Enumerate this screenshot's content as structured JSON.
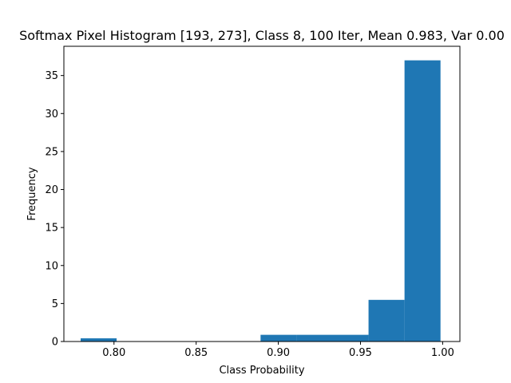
{
  "chart_data": {
    "type": "bar",
    "title": "Softmax Pixel Histogram [193, 273], Class 8, 100 Iter, Mean 0.983, Var 0.00",
    "xlabel": "Class Probability",
    "ylabel": "Frequency",
    "xlim": [
      0.7695,
      1.0105
    ],
    "ylim": [
      0,
      38.85
    ],
    "xticks": [
      0.8,
      0.85,
      0.9,
      0.95,
      1.0
    ],
    "xtick_labels": [
      "0.80",
      "0.85",
      "0.90",
      "0.95",
      "1.00"
    ],
    "yticks": [
      0,
      5,
      10,
      15,
      20,
      25,
      30,
      35
    ],
    "ytick_labels": [
      "0",
      "5",
      "10",
      "15",
      "20",
      "25",
      "30",
      "35"
    ],
    "bin_edges": [
      0.7797,
      0.8016,
      0.8235,
      0.8454,
      0.8673,
      0.8892,
      0.9111,
      0.933,
      0.9549,
      0.9768,
      0.9987
    ],
    "values": [
      0.42,
      0.0,
      0.0,
      0.0,
      0.0,
      0.88,
      0.88,
      0.88,
      5.48,
      37.0
    ],
    "color": "#1f77b4",
    "grid": false,
    "legend": "none"
  }
}
